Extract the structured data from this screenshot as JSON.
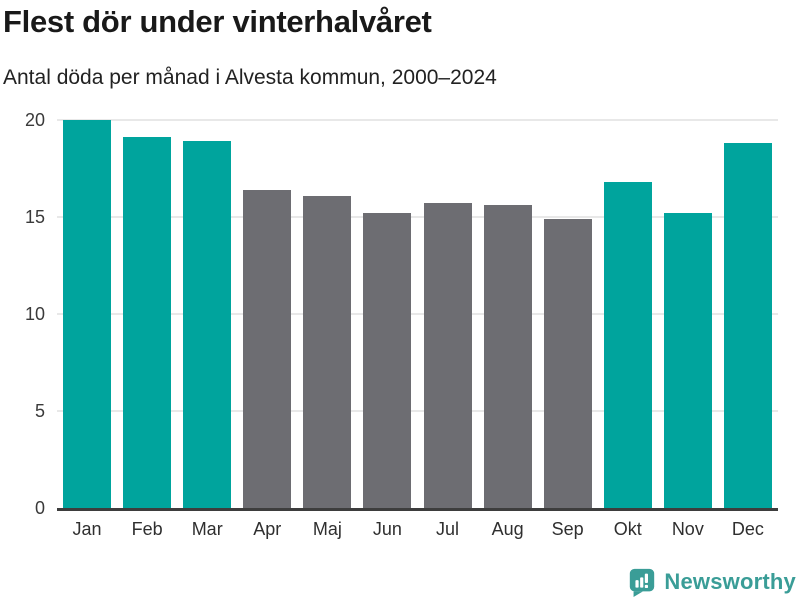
{
  "header": {
    "title": "Flest dör under vinterhalvåret",
    "subtitle": "Antal döda per månad i Alvesta kommun, 2000–2024"
  },
  "chart_data": {
    "type": "bar",
    "title": "Flest dör under vinterhalvåret",
    "subtitle": "Antal döda per månad i Alvesta kommun, 2000–2024",
    "categories": [
      "Jan",
      "Feb",
      "Mar",
      "Apr",
      "Maj",
      "Jun",
      "Jul",
      "Aug",
      "Sep",
      "Okt",
      "Nov",
      "Dec"
    ],
    "values": [
      20.0,
      19.1,
      18.9,
      16.4,
      16.1,
      15.2,
      15.7,
      15.6,
      14.9,
      16.8,
      15.2,
      18.8
    ],
    "bar_colors": [
      "#00a49d",
      "#00a49d",
      "#00a49d",
      "#6d6d72",
      "#6d6d72",
      "#6d6d72",
      "#6d6d72",
      "#6d6d72",
      "#6d6d72",
      "#00a49d",
      "#00a49d",
      "#00a49d"
    ],
    "highlight_color": "#00a49d",
    "base_color": "#6d6d72",
    "xlabel": "",
    "ylabel": "",
    "ylim": [
      0,
      20
    ],
    "yticks": [
      0,
      5,
      10,
      15,
      20
    ],
    "grid": "horizontal",
    "gridline_color": "#e8e8e8",
    "axis_line_color": "#3d3d3d",
    "legend": "none"
  },
  "footer": {
    "brand": "Newsworthy",
    "brand_color": "#3a9d97",
    "logo_icon": "newsworthy-speech-bubble-bar-chart-icon"
  }
}
